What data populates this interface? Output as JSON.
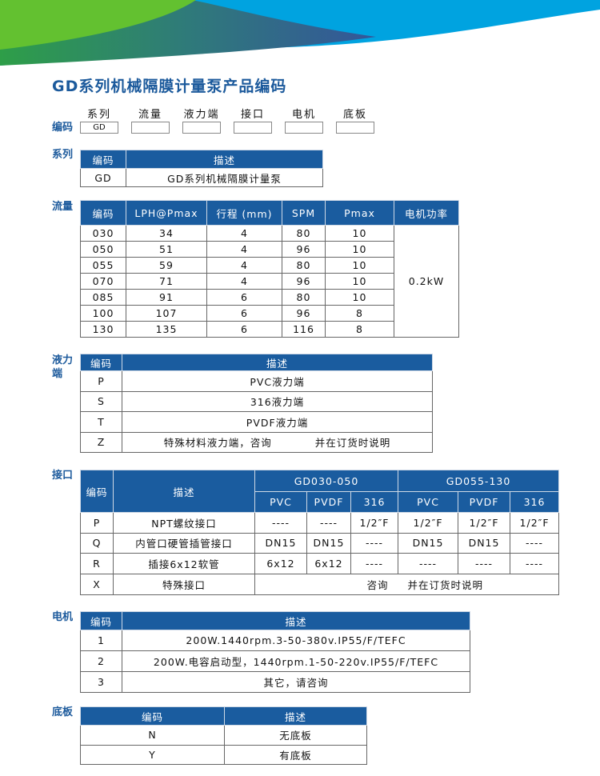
{
  "title": "GD系列机械隔膜计量泵产品编码",
  "code_row": {
    "label": "编码",
    "headers": [
      "系列",
      "流量",
      "液力端",
      "接口",
      "电机",
      "底板"
    ],
    "values": [
      "GD",
      "",
      "",
      "",
      "",
      ""
    ]
  },
  "colors": {
    "accent": "#1a5c9f",
    "title": "#1c5a9c",
    "green": "#5fbf2f",
    "blue": "#00a3e0"
  },
  "series": {
    "label": "系列",
    "headers": [
      "编码",
      "描述"
    ],
    "rows": [
      [
        "GD",
        "GD系列机械隔膜计量泵"
      ]
    ]
  },
  "flow": {
    "label": "流量",
    "headers": [
      "编码",
      "LPH@Pmax",
      "行程 (mm)",
      "SPM",
      "Pmax",
      "电机功率"
    ],
    "rows": [
      [
        "030",
        "34",
        "4",
        "80",
        "10"
      ],
      [
        "050",
        "51",
        "4",
        "96",
        "10"
      ],
      [
        "055",
        "59",
        "4",
        "80",
        "10"
      ],
      [
        "070",
        "71",
        "4",
        "96",
        "10"
      ],
      [
        "085",
        "91",
        "6",
        "80",
        "10"
      ],
      [
        "100",
        "107",
        "6",
        "96",
        "8"
      ],
      [
        "130",
        "135",
        "6",
        "116",
        "8"
      ]
    ],
    "motor_power": "0.2kW"
  },
  "liquid_end": {
    "label": "液力端",
    "headers": [
      "编码",
      "描述"
    ],
    "rows": [
      [
        "P",
        "PVC液力端"
      ],
      [
        "S",
        "316液力端"
      ],
      [
        "T",
        "PVDF液力端"
      ],
      [
        "Z",
        "特殊材料液力端，咨询　　　　并在订货时说明"
      ]
    ]
  },
  "connection": {
    "label": "接口",
    "headers": [
      "编码",
      "描述"
    ],
    "groups": [
      "GD030-050",
      "GD055-130"
    ],
    "materials": [
      "PVC",
      "PVDF",
      "316",
      "PVC",
      "PVDF",
      "316"
    ],
    "rows": [
      [
        "P",
        "NPT螺纹接口",
        "----",
        "----",
        "1/2″F",
        "1/2″F",
        "1/2″F",
        "1/2″F"
      ],
      [
        "Q",
        "内管口硬管插管接口",
        "DN15",
        "DN15",
        "----",
        "DN15",
        "DN15",
        "----"
      ],
      [
        "R",
        "插接6x12软管",
        "6x12",
        "6x12",
        "----",
        "----",
        "----",
        "----"
      ]
    ],
    "special": {
      "code": "X",
      "desc": "特殊接口",
      "note_a": "咨询",
      "note_b": "并在订货时说明"
    }
  },
  "motor": {
    "label": "电机",
    "headers": [
      "编码",
      "描述"
    ],
    "rows": [
      [
        "1",
        "200W.1440rpm.3-50-380v.IP55/F/TEFC"
      ],
      [
        "2",
        "200W.电容启动型，1440rpm.1-50-220v.IP55/F/TEFC"
      ],
      [
        "3",
        "其它，请咨询"
      ]
    ]
  },
  "baseplate": {
    "label": "底板",
    "headers": [
      "编码",
      "描述"
    ],
    "rows": [
      [
        "N",
        "无底板"
      ],
      [
        "Y",
        "有底板"
      ]
    ]
  }
}
